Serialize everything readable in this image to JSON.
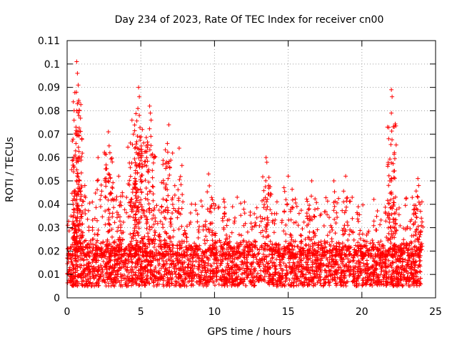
{
  "chart_data": {
    "type": "scatter",
    "title": "Day 234 of 2023, Rate Of TEC Index for receiver cn00",
    "xlabel": "GPS time / hours",
    "ylabel": "ROTI / TECUs",
    "xlim": [
      0,
      25
    ],
    "ylim": [
      0,
      0.11
    ],
    "x_ticks": [
      0,
      5,
      10,
      15,
      20,
      25
    ],
    "x_tick_labels": [
      "0",
      "5",
      "10",
      "15",
      "20",
      "25"
    ],
    "y_ticks": [
      0,
      0.01,
      0.02,
      0.03,
      0.04,
      0.05,
      0.06,
      0.07,
      0.08,
      0.09,
      0.1,
      0.11
    ],
    "y_tick_labels": [
      "0",
      "0.01",
      "0.02",
      "0.03",
      "0.04",
      "0.05",
      "0.06",
      "0.07",
      "0.08",
      "0.09",
      "0.1",
      "0.11"
    ],
    "grid": true,
    "marker": "+",
    "color": "#ff0000",
    "series": [
      {
        "name": "ROTI",
        "x_range": [
          0,
          24
        ],
        "baseline_range": [
          0.005,
          0.022
        ],
        "notable_points": [
          {
            "x": 0.65,
            "y": 0.101
          },
          {
            "x": 0.7,
            "y": 0.096
          },
          {
            "x": 0.75,
            "y": 0.091
          },
          {
            "x": 0.7,
            "y": 0.083
          },
          {
            "x": 0.65,
            "y": 0.08
          },
          {
            "x": 0.6,
            "y": 0.073
          },
          {
            "x": 0.6,
            "y": 0.066
          },
          {
            "x": 0.65,
            "y": 0.058
          },
          {
            "x": 1.2,
            "y": 0.048
          },
          {
            "x": 2.1,
            "y": 0.06
          },
          {
            "x": 2.8,
            "y": 0.071
          },
          {
            "x": 2.85,
            "y": 0.065
          },
          {
            "x": 2.9,
            "y": 0.062
          },
          {
            "x": 3.5,
            "y": 0.052
          },
          {
            "x": 4.4,
            "y": 0.076
          },
          {
            "x": 4.5,
            "y": 0.07
          },
          {
            "x": 4.6,
            "y": 0.064
          },
          {
            "x": 4.85,
            "y": 0.09
          },
          {
            "x": 4.9,
            "y": 0.086
          },
          {
            "x": 4.8,
            "y": 0.081
          },
          {
            "x": 4.9,
            "y": 0.078
          },
          {
            "x": 5.1,
            "y": 0.072
          },
          {
            "x": 5.6,
            "y": 0.082
          },
          {
            "x": 5.65,
            "y": 0.079
          },
          {
            "x": 5.7,
            "y": 0.076
          },
          {
            "x": 6.9,
            "y": 0.074
          },
          {
            "x": 6.8,
            "y": 0.066
          },
          {
            "x": 7.6,
            "y": 0.064
          },
          {
            "x": 6.5,
            "y": 0.057
          },
          {
            "x": 9.6,
            "y": 0.053
          },
          {
            "x": 13.5,
            "y": 0.06
          },
          {
            "x": 13.55,
            "y": 0.058
          },
          {
            "x": 15.0,
            "y": 0.052
          },
          {
            "x": 16.6,
            "y": 0.05
          },
          {
            "x": 18.1,
            "y": 0.05
          },
          {
            "x": 18.9,
            "y": 0.052
          },
          {
            "x": 22.0,
            "y": 0.089
          },
          {
            "x": 22.05,
            "y": 0.086
          },
          {
            "x": 22.0,
            "y": 0.079
          },
          {
            "x": 22.0,
            "y": 0.05
          },
          {
            "x": 23.8,
            "y": 0.051
          },
          {
            "x": 23.85,
            "y": 0.048
          },
          {
            "x": 23.8,
            "y": 0.043
          }
        ]
      }
    ]
  }
}
